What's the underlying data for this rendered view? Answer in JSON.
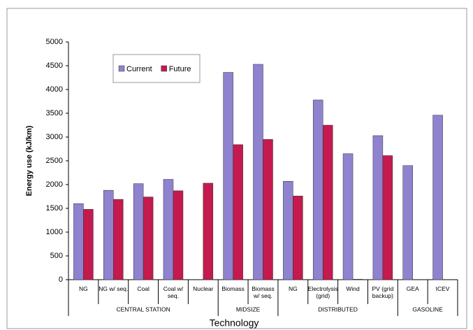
{
  "chart_data": {
    "type": "bar",
    "x_label": "Technology",
    "y_label": "Energy use (kJ/km)",
    "groups": [
      {
        "name": "CENTRAL STATION",
        "categories": [
          "NG",
          "NG w/ seq.",
          "Coal",
          "Coal w/ seq.",
          "Nuclear"
        ]
      },
      {
        "name": "MIDSIZE",
        "categories": [
          "Biomass",
          "Biomass w/ seq."
        ]
      },
      {
        "name": "DISTRIBUTED",
        "categories": [
          "NG",
          "Electrolysis (grid)",
          "Wind",
          "PV (grid backup)"
        ]
      },
      {
        "name": "GASOLINE",
        "categories": [
          "GEA",
          "ICEV"
        ]
      }
    ],
    "series": [
      {
        "name": "Current",
        "color": "#8f82cf",
        "values": [
          1600,
          1880,
          2020,
          2110,
          null,
          4360,
          4530,
          2070,
          3780,
          2650,
          3030,
          2400,
          3460
        ]
      },
      {
        "name": "Future",
        "color": "#c41a4e",
        "values": [
          1480,
          1690,
          1740,
          1870,
          2030,
          2840,
          2950,
          1760,
          3250,
          10,
          2610,
          null,
          null
        ]
      }
    ],
    "ylim": [
      0,
      5000
    ],
    "yticks": [
      0,
      500,
      1000,
      1500,
      2000,
      2500,
      3000,
      3500,
      4000,
      4500,
      5000
    ],
    "grid": false,
    "legend": "upper left"
  }
}
